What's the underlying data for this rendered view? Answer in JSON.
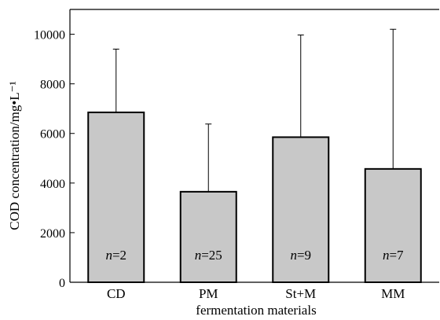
{
  "chart_data": {
    "type": "bar",
    "xlabel": "fermentation materials",
    "ylabel": "COD concentration/mg•L⁻¹",
    "categories": [
      "CD",
      "PM",
      "St+M",
      "MM"
    ],
    "values": [
      6850,
      3650,
      5850,
      4570
    ],
    "error_upper": [
      9400,
      6380,
      9970,
      10200
    ],
    "annotation_prefix": "n",
    "annotation_values": [
      "=2",
      "=25",
      "=9",
      "=7"
    ],
    "ylim": [
      0,
      11000
    ],
    "yticks": [
      0,
      2000,
      4000,
      6000,
      8000,
      10000
    ],
    "ytick_labels": [
      "0",
      "2000",
      "4000",
      "6000",
      "8000",
      "10000"
    ],
    "grid": false,
    "bar_color": "#c8c8c8",
    "edge_color": "#000000"
  }
}
